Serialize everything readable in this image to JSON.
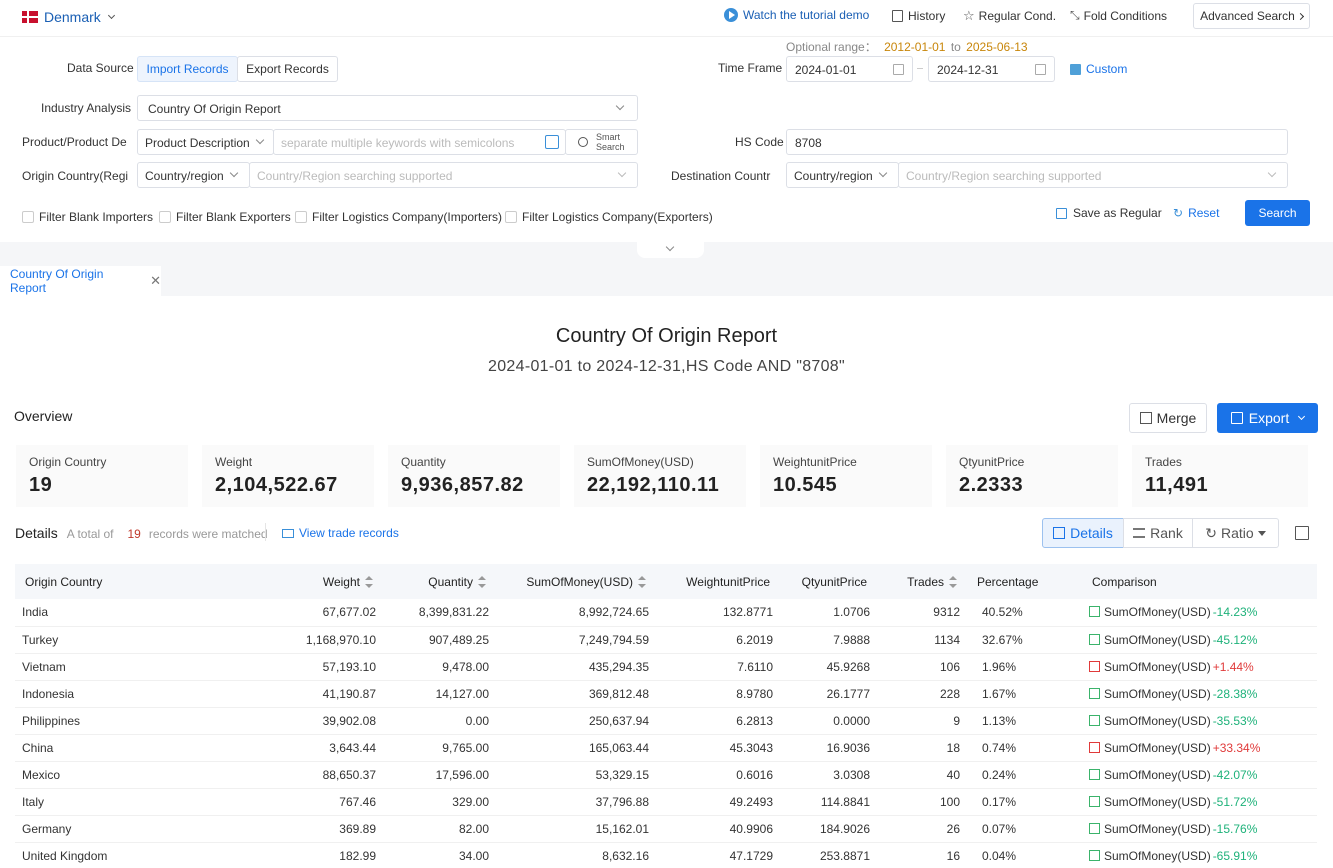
{
  "topbar": {
    "country": "Denmark",
    "tutorial": "Watch the tutorial demo",
    "history": "History",
    "regular": "Regular Cond.",
    "fold": "Fold Conditions",
    "advanced": "Advanced Search"
  },
  "form": {
    "data_source_label": "Data Source",
    "import_tab": "Import Records",
    "export_tab": "Export Records",
    "optional_range_label": "Optional range：",
    "range_start": "2012-01-01",
    "range_to": "to",
    "range_end": "2025-06-13",
    "time_frame_label": "Time Frame",
    "date_from": "2024-01-01",
    "date_to": "2024-12-31",
    "custom": "Custom",
    "industry_label": "Industry Analysis",
    "industry_value": "Country Of Origin Report",
    "product_label": "Product/Product De",
    "product_select": "Product Description",
    "product_placeholder": "separate multiple keywords with semicolons",
    "smart_search_1": "Smart",
    "smart_search_2": "Search",
    "hs_label": "HS Code",
    "hs_value": "8708",
    "origin_label": "Origin Country(Regi",
    "origin_select": "Country/region",
    "origin_placeholder": "Country/Region searching supported",
    "dest_label": "Destination Countr",
    "dest_select": "Country/region",
    "dest_placeholder": "Country/Region searching supported",
    "filters": [
      "Filter Blank Importers",
      "Filter Blank Exporters",
      "Filter Logistics Company(Importers)",
      "Filter Logistics Company(Exporters)"
    ],
    "save_regular": "Save as Regular",
    "reset": "Reset",
    "search": "Search"
  },
  "report_tab": "Country Of Origin Report",
  "report": {
    "title": "Country Of Origin Report",
    "subtitle": "2024-01-01 to 2024-12-31,HS Code AND \"8708\""
  },
  "overview": {
    "title": "Overview",
    "merge": "Merge",
    "export": "Export",
    "stats": [
      {
        "label": "Origin Country",
        "value": "19"
      },
      {
        "label": "Weight",
        "value": "2,104,522.67"
      },
      {
        "label": "Quantity",
        "value": "9,936,857.82"
      },
      {
        "label": "SumOfMoney(USD)",
        "value": "22,192,110.11"
      },
      {
        "label": "WeightunitPrice",
        "value": "10.545"
      },
      {
        "label": "QtyunitPrice",
        "value": "2.2333"
      },
      {
        "label": "Trades",
        "value": "11,491"
      }
    ]
  },
  "details": {
    "title": "Details",
    "total_prefix": "A total of",
    "total_count": "19",
    "total_suffix": "records were matched",
    "view_trade": "View trade records",
    "view_details": "Details",
    "view_rank": "Rank",
    "view_ratio": "Ratio"
  },
  "table": {
    "headers": [
      "Origin Country",
      "Weight",
      "Quantity",
      "SumOfMoney(USD)",
      "WeightunitPrice",
      "QtyunitPrice",
      "Trades",
      "Percentage",
      "Comparison"
    ],
    "rows": [
      [
        "India",
        "67,677.02",
        "8,399,831.22",
        "8,992,724.65",
        "132.8771",
        "1.0706",
        "9312",
        "40.52%",
        "SumOfMoney(USD)",
        "-14.23%",
        "down"
      ],
      [
        "Turkey",
        "1,168,970.10",
        "907,489.25",
        "7,249,794.59",
        "6.2019",
        "7.9888",
        "1134",
        "32.67%",
        "SumOfMoney(USD)",
        "-45.12%",
        "down"
      ],
      [
        "Vietnam",
        "57,193.10",
        "9,478.00",
        "435,294.35",
        "7.6110",
        "45.9268",
        "106",
        "1.96%",
        "SumOfMoney(USD)",
        "+1.44%",
        "up"
      ],
      [
        "Indonesia",
        "41,190.87",
        "14,127.00",
        "369,812.48",
        "8.9780",
        "26.1777",
        "228",
        "1.67%",
        "SumOfMoney(USD)",
        "-28.38%",
        "down"
      ],
      [
        "Philippines",
        "39,902.08",
        "0.00",
        "250,637.94",
        "6.2813",
        "0.0000",
        "9",
        "1.13%",
        "SumOfMoney(USD)",
        "-35.53%",
        "down"
      ],
      [
        "China",
        "3,643.44",
        "9,765.00",
        "165,063.44",
        "45.3043",
        "16.9036",
        "18",
        "0.74%",
        "SumOfMoney(USD)",
        "+33.34%",
        "up"
      ],
      [
        "Mexico",
        "88,650.37",
        "17,596.00",
        "53,329.15",
        "0.6016",
        "3.0308",
        "40",
        "0.24%",
        "SumOfMoney(USD)",
        "-42.07%",
        "down"
      ],
      [
        "Italy",
        "767.46",
        "329.00",
        "37,796.88",
        "49.2493",
        "114.8841",
        "100",
        "0.17%",
        "SumOfMoney(USD)",
        "-51.72%",
        "down"
      ],
      [
        "Germany",
        "369.89",
        "82.00",
        "15,162.01",
        "40.9906",
        "184.9026",
        "26",
        "0.07%",
        "SumOfMoney(USD)",
        "-15.76%",
        "down"
      ],
      [
        "United Kingdom",
        "182.99",
        "34.00",
        "8,632.16",
        "47.1729",
        "253.8871",
        "16",
        "0.04%",
        "SumOfMoney(USD)",
        "-65.91%",
        "down"
      ]
    ]
  }
}
